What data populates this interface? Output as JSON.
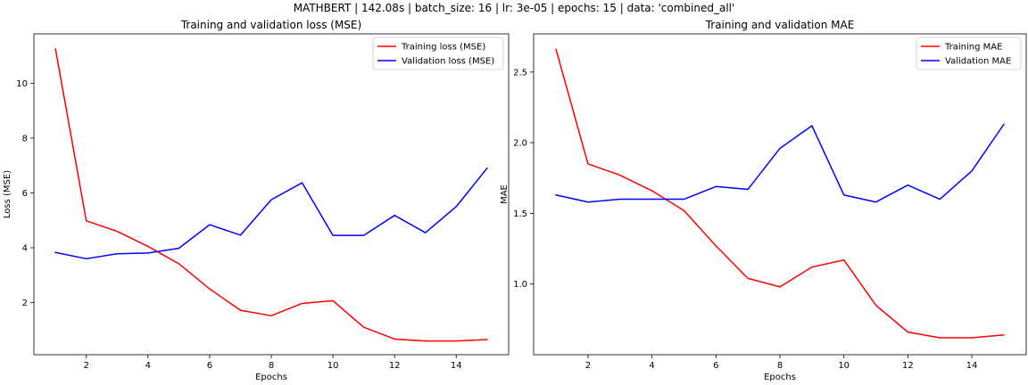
{
  "suptitle": "MATHBERT | 142.08s | batch_size: 16 | lr: 3e-05 | epochs: 15 | data: 'combined_all'",
  "chart_data": [
    {
      "type": "line",
      "title": "Training and validation loss (MSE)",
      "xlabel": "Epochs",
      "ylabel": "Loss (MSE)",
      "xlim": [
        0.3,
        15.7
      ],
      "ylim": [
        0.1,
        11.8
      ],
      "xticks": [
        2,
        4,
        6,
        8,
        10,
        12,
        14
      ],
      "yticks": [
        2,
        4,
        6,
        8,
        10
      ],
      "grid": false,
      "legend_position": "top-right",
      "x": [
        1,
        2,
        3,
        4,
        5,
        6,
        7,
        8,
        9,
        10,
        11,
        12,
        13,
        14,
        15
      ],
      "series": [
        {
          "name": "Training loss (MSE)",
          "color": "#ff0000",
          "values": [
            11.25,
            4.98,
            4.6,
            4.05,
            3.42,
            2.5,
            1.72,
            1.52,
            1.97,
            2.07,
            1.1,
            0.67,
            0.6,
            0.6,
            0.65
          ]
        },
        {
          "name": "Validation loss (MSE)",
          "color": "#0000ff",
          "values": [
            3.83,
            3.6,
            3.78,
            3.81,
            3.98,
            4.84,
            4.46,
            5.75,
            6.37,
            4.45,
            4.45,
            5.18,
            4.55,
            5.5,
            6.9
          ]
        }
      ]
    },
    {
      "type": "line",
      "title": "Training and validation MAE",
      "xlabel": "Epochs",
      "ylabel": "MAE",
      "xlim": [
        0.3,
        15.7
      ],
      "ylim": [
        0.5,
        2.77
      ],
      "xticks": [
        2,
        4,
        6,
        8,
        10,
        12,
        14
      ],
      "yticks": [
        1.0,
        1.5,
        2.0,
        2.5
      ],
      "grid": false,
      "legend_position": "top-right",
      "x": [
        1,
        2,
        3,
        4,
        5,
        6,
        7,
        8,
        9,
        10,
        11,
        12,
        13,
        14,
        15
      ],
      "series": [
        {
          "name": "Training MAE",
          "color": "#ff0000",
          "values": [
            2.66,
            1.85,
            1.77,
            1.66,
            1.52,
            1.27,
            1.04,
            0.98,
            1.12,
            1.17,
            0.85,
            0.66,
            0.62,
            0.62,
            0.64
          ]
        },
        {
          "name": "Validation MAE",
          "color": "#0000ff",
          "values": [
            1.63,
            1.58,
            1.6,
            1.6,
            1.6,
            1.69,
            1.67,
            1.96,
            2.12,
            1.63,
            1.58,
            1.7,
            1.6,
            1.8,
            2.13
          ]
        }
      ]
    }
  ]
}
